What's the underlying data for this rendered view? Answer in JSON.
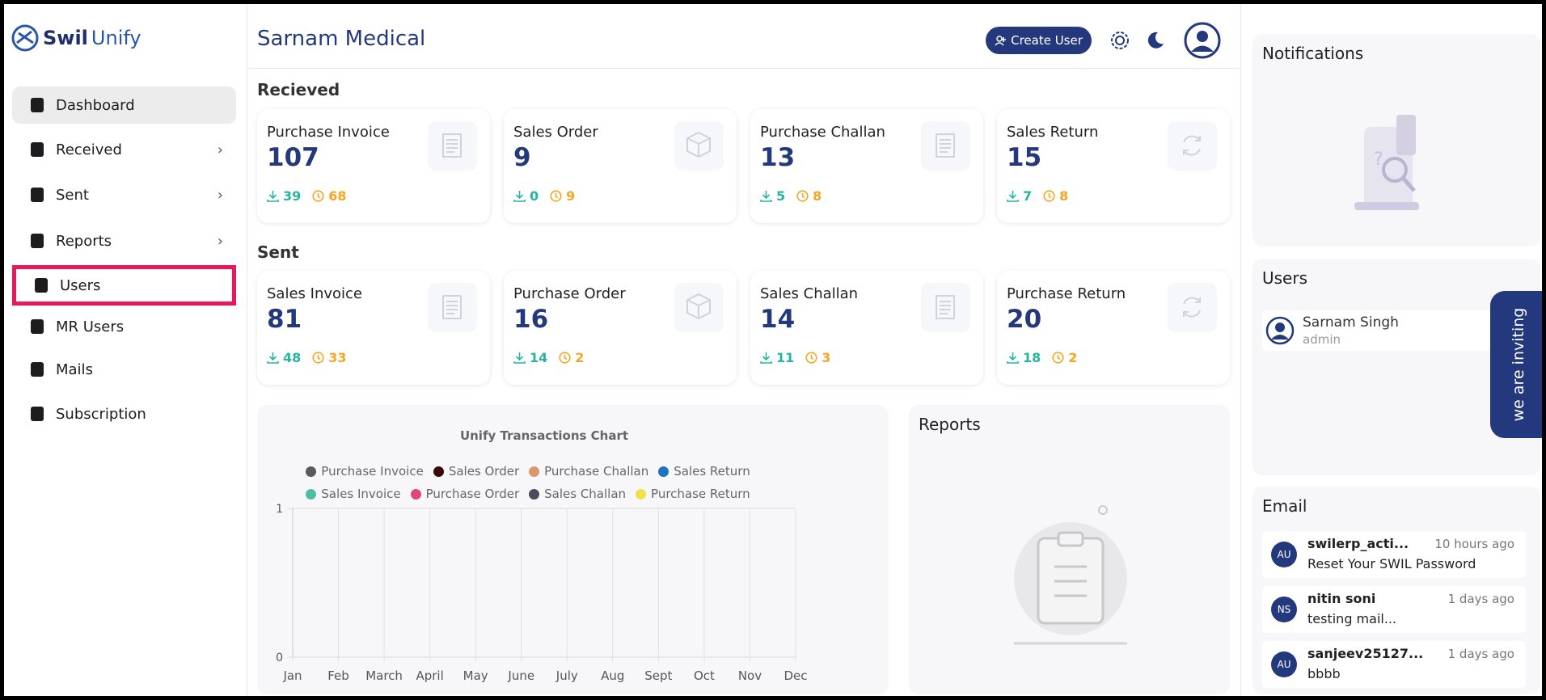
{
  "sidebar": {
    "logo_first": "Swil",
    "logo_second": "Unify",
    "active_index": 0,
    "highlight_index": 4,
    "nav": [
      {
        "label": "Dashboard",
        "has_submenu": false
      },
      {
        "label": "Received",
        "has_submenu": true
      },
      {
        "label": "Sent",
        "has_submenu": true
      },
      {
        "label": "Reports",
        "has_submenu": true
      },
      {
        "label": "Users",
        "has_submenu": false
      },
      {
        "label": "MR Users",
        "has_submenu": false
      },
      {
        "label": "Mails",
        "has_submenu": false
      },
      {
        "label": "Subscription",
        "has_submenu": false
      }
    ]
  },
  "header": {
    "title": "Sarnam Medical",
    "create_button": "Create User"
  },
  "received": {
    "heading": "Recieved",
    "cards": [
      {
        "title": "Purchase Invoice",
        "total": 107,
        "downloaded": 39,
        "pending": 68
      },
      {
        "title": "Sales Order",
        "total": 9,
        "downloaded": 0,
        "pending": 9
      },
      {
        "title": "Purchase Challan",
        "total": 13,
        "downloaded": 5,
        "pending": 8
      },
      {
        "title": "Sales Return",
        "total": 15,
        "downloaded": 7,
        "pending": 8
      }
    ]
  },
  "sent": {
    "heading": "Sent",
    "cards": [
      {
        "title": "Sales Invoice",
        "total": 81,
        "downloaded": 48,
        "pending": 33
      },
      {
        "title": "Purchase Order",
        "total": 16,
        "downloaded": 14,
        "pending": 2
      },
      {
        "title": "Sales Challan",
        "total": 14,
        "downloaded": 11,
        "pending": 3
      },
      {
        "title": "Purchase Return",
        "total": 20,
        "downloaded": 18,
        "pending": 2
      }
    ]
  },
  "chart": {
    "type": "line",
    "title": "Unify Transactions Chart",
    "legend": [
      {
        "name": "Purchase Invoice",
        "color": "#5a5a5a"
      },
      {
        "name": "Sales Order",
        "color": "#3a0a0a"
      },
      {
        "name": "Purchase Challan",
        "color": "#d9976a"
      },
      {
        "name": "Sales Return",
        "color": "#1e73be"
      },
      {
        "name": "Sales Invoice",
        "color": "#4cbfa6"
      },
      {
        "name": "Purchase Order",
        "color": "#e0457b"
      },
      {
        "name": "Sales Challan",
        "color": "#4a4d5e"
      },
      {
        "name": "Purchase Return",
        "color": "#f2e14c"
      }
    ],
    "categories": [
      "Jan",
      "Feb",
      "March",
      "April",
      "May",
      "June",
      "July",
      "Aug",
      "Sept",
      "Oct",
      "Nov",
      "Dec"
    ],
    "ylim": [
      0,
      1
    ],
    "yticks": [
      0,
      1
    ],
    "grid": true
  },
  "reports": {
    "title": "Reports"
  },
  "notifications": {
    "title": "Notifications"
  },
  "users": {
    "title": "Users",
    "list": [
      {
        "name": "Sarnam Singh",
        "role": "admin"
      }
    ]
  },
  "email": {
    "title": "Email",
    "items": [
      {
        "initials": "AU",
        "sender": "swilerp_acti...",
        "time": "10 hours ago",
        "subject": "Reset Your SWIL Password"
      },
      {
        "initials": "NS",
        "sender": "nitin soni",
        "time": "1 days ago",
        "subject": "testing mail..."
      },
      {
        "initials": "AU",
        "sender": "sanjeev25127...",
        "time": "1 days ago",
        "subject": "bbbb"
      }
    ]
  },
  "invite_tab": "we are inviting"
}
